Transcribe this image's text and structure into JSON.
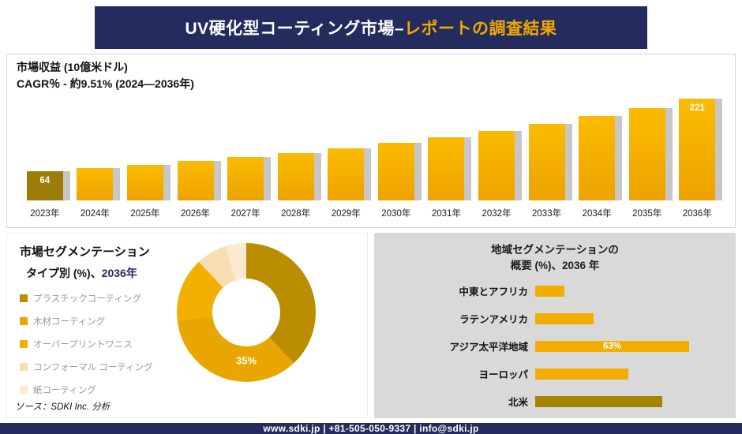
{
  "page": {
    "title": {
      "main": "UV硬化型コーティング市場–",
      "accent": "レポートの調査結果"
    },
    "footer": "www.sdki.jp | +81-505-050-9337 | info@sdki.jp",
    "source": "ソース：SDKI Inc. 分析"
  },
  "segmentation": {
    "title": "市場セグメンテーション",
    "subtitle_prefix": "タイプ別 (%)、",
    "subtitle_year": "2036年",
    "center_label": "35%"
  },
  "region": {
    "title_line1": "地域セグメンテーションの",
    "title_line2": "概要 (%)、2036 年"
  },
  "colors": {
    "navy": "#232c5c",
    "gold": "#f0a800",
    "dark_gold": "#9c7d08",
    "shadow_gray": "#c7c7c7",
    "panel_gray": "#d9d9d9"
  },
  "chart_data": [
    {
      "type": "bar",
      "title": "市場収益 (10億米ドル)",
      "subtitle": "CAGR％ - 約9.51% (2024―2036年)",
      "categories": [
        "2023年",
        "2024年",
        "2025年",
        "2026年",
        "2027年",
        "2028年",
        "2029年",
        "2030年",
        "2031年",
        "2032年",
        "2033年",
        "2034年",
        "2035年",
        "2036年"
      ],
      "values": [
        64,
        70,
        77,
        85,
        94,
        103,
        113,
        125,
        137,
        151,
        166,
        183,
        201,
        221
      ],
      "labeled_points": {
        "2023年": "64",
        "2036年": "221"
      },
      "ylim": [
        0,
        230
      ],
      "grid": false,
      "legend_position": "none",
      "bar_color": "#f0a800",
      "first_bar_color": "#9c7d08"
    },
    {
      "type": "pie",
      "donut": true,
      "title": "市場セグメンテーション タイプ別 (%)、2036年",
      "labels": [
        "プラスチックコーティング",
        "木材コーティング",
        "オーバープリントワニス",
        "コンフォーマル コーティング",
        "紙コーティング"
      ],
      "values": [
        38,
        35,
        15,
        7,
        5
      ],
      "colors": [
        "#bb8d00",
        "#eaa600",
        "#f3b000",
        "#f7ddb0",
        "#fbead0"
      ],
      "shown_label": {
        "segment": "木材コーティング",
        "text": "35%"
      }
    },
    {
      "type": "bar",
      "orientation": "horizontal",
      "title": "地域セグメンテーションの概要 (%)、2036 年",
      "categories": [
        "中東とアフリカ",
        "ラテンアメリカ",
        "アジア太平洋地域",
        "ヨーロッパ",
        "北米"
      ],
      "values": [
        12,
        24,
        63,
        38,
        52
      ],
      "bar_labels": [
        "",
        "",
        "63%",
        "",
        ""
      ],
      "xlim": [
        0,
        70
      ],
      "bar_color": "#f3ad00",
      "last_bar_color": "#a58400"
    }
  ]
}
